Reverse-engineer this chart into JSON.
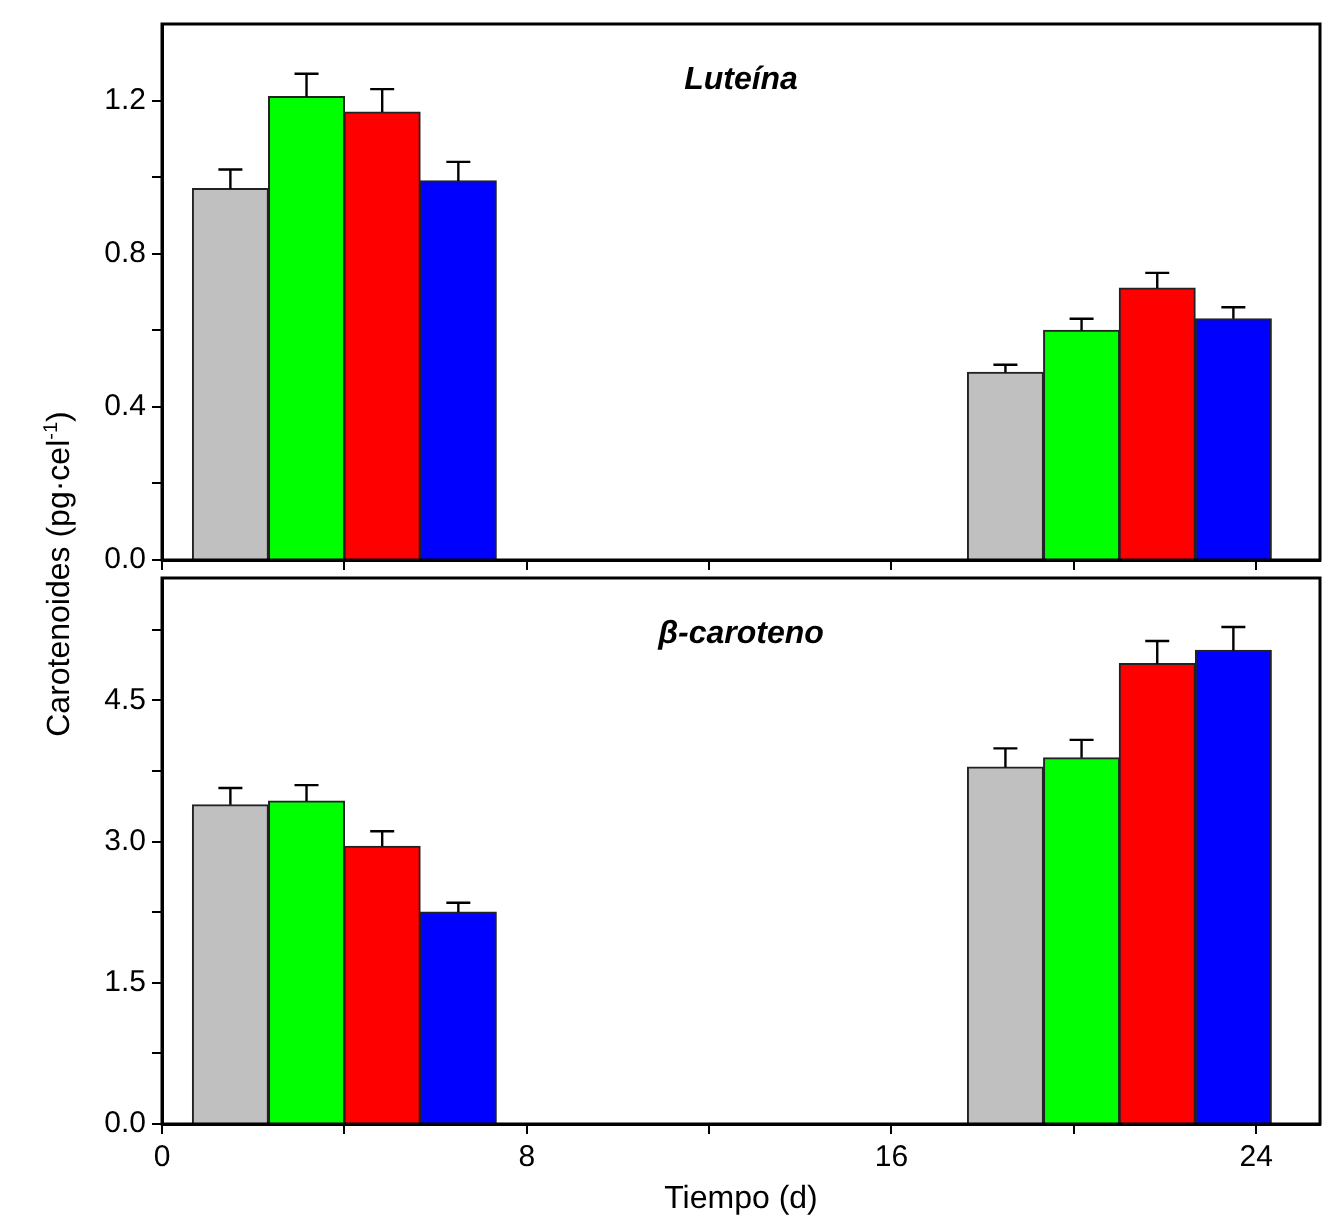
{
  "chart_data": [
    {
      "type": "bar",
      "title": "Luteína",
      "ylabel": "Carotenoides (pg·cel$^{-1}$)",
      "tick_labels": "y",
      "xlim": [
        0,
        25.4
      ],
      "xticks": [
        0,
        {
          "value": 4,
          "label": null
        },
        8,
        {
          "value": 12,
          "label": null
        },
        16,
        {
          "value": 20,
          "label": null
        },
        24
      ],
      "ylim": [
        0,
        1.4
      ],
      "yticks": [
        {
          "value": 0,
          "label": "0.0"
        },
        {
          "value": 0.2,
          "label": null
        },
        0.4,
        {
          "value": 0.6,
          "label": null
        },
        0.8,
        {
          "value": 1.0,
          "label": null
        },
        1.2
      ],
      "series": [
        {
          "color": "#c0c0c0",
          "x": [
            1.5,
            18.5
          ],
          "values": [
            0.97,
            0.49
          ],
          "errors": [
            [
              0.97,
              1.02
            ],
            [
              0.49,
              0.51
            ]
          ]
        },
        {
          "color": "#00ff00",
          "x": [
            3.17,
            20.17
          ],
          "values": [
            1.21,
            0.6
          ],
          "errors": [
            [
              1.21,
              1.27
            ],
            [
              0.6,
              0.63
            ]
          ]
        },
        {
          "color": "#ff0000",
          "x": [
            4.83,
            21.83
          ],
          "values": [
            1.17,
            0.71
          ],
          "errors": [
            [
              1.17,
              1.23
            ],
            [
              0.71,
              0.75
            ]
          ]
        },
        {
          "color": "#0000ff",
          "x": [
            6.5,
            23.5
          ],
          "values": [
            0.99,
            0.63
          ],
          "errors": [
            [
              0.99,
              1.04
            ],
            [
              0.63,
              0.66
            ]
          ]
        }
      ]
    },
    {
      "type": "bar",
      "title": "β-caroteno",
      "xlabel": "Tiempo (d)",
      "xlim": [
        0,
        25.4
      ],
      "xticks": [
        0,
        {
          "value": 4,
          "label": null
        },
        8,
        {
          "value": 12,
          "label": null
        },
        16,
        {
          "value": 20,
          "label": null
        },
        24
      ],
      "ylim": [
        0,
        5.8
      ],
      "yticks": [
        {
          "value": 0,
          "label": "0.0"
        },
        {
          "value": 0.75,
          "label": null
        },
        1.5,
        {
          "value": 2.25,
          "label": null
        },
        {
          "value": 3,
          "label": "3.0"
        },
        {
          "value": 3.75,
          "label": null
        },
        4.5,
        {
          "value": 5.25,
          "label": null
        }
      ],
      "series": [
        {
          "color": "#c0c0c0",
          "x": [
            1.5,
            18.5
          ],
          "values": [
            3.39,
            3.79
          ],
          "errors": [
            [
              3.39,
              3.57
            ],
            [
              3.79,
              3.99
            ]
          ]
        },
        {
          "color": "#00ff00",
          "x": [
            3.17,
            20.17
          ],
          "values": [
            3.43,
            3.89
          ],
          "errors": [
            [
              3.43,
              3.6
            ],
            [
              3.89,
              4.08
            ]
          ]
        },
        {
          "color": "#ff0000",
          "x": [
            4.83,
            21.83
          ],
          "values": [
            2.95,
            4.89
          ],
          "errors": [
            [
              2.95,
              3.11
            ],
            [
              4.89,
              5.13
            ]
          ]
        },
        {
          "color": "#0000ff",
          "x": [
            6.5,
            23.5
          ],
          "values": [
            2.25,
            5.03
          ],
          "errors": [
            [
              2.25,
              2.35
            ],
            [
              5.03,
              5.28
            ]
          ]
        }
      ]
    }
  ]
}
